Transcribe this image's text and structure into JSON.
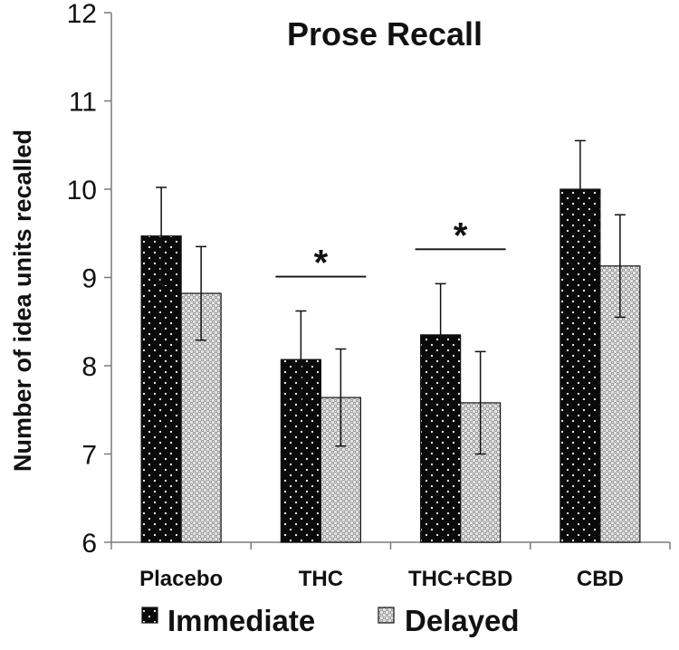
{
  "chart_data": {
    "type": "bar",
    "title": "Prose Recall",
    "ylabel": "Number of idea units recalled",
    "xlabel": "",
    "categories": [
      "Placebo",
      "THC",
      "THC+CBD",
      "CBD"
    ],
    "ylim": [
      6,
      12
    ],
    "yticks": [
      6,
      7,
      8,
      9,
      10,
      11,
      12
    ],
    "grid": false,
    "legend_position": "bottom",
    "series": [
      {
        "name": "Immediate",
        "pattern": "black with white dots",
        "values": [
          9.47,
          8.07,
          8.35,
          10.0
        ],
        "errors": [
          0.55,
          0.55,
          0.58,
          0.55
        ]
      },
      {
        "name": "Delayed",
        "pattern": "light gray checkered",
        "values": [
          8.82,
          7.64,
          7.58,
          9.13
        ],
        "errors": [
          0.53,
          0.55,
          0.58,
          0.58
        ]
      }
    ],
    "annotations": [
      {
        "category": "THC",
        "text": "*"
      },
      {
        "category": "THC+CBD",
        "text": "*"
      }
    ]
  },
  "colors": {
    "immediate_fill": "#0a0a0a",
    "immediate_dots": "#ffffff",
    "delayed_fill": "#d9d9d9",
    "delayed_checks": "#8a8a8a",
    "axis": "#7a7a7a"
  }
}
